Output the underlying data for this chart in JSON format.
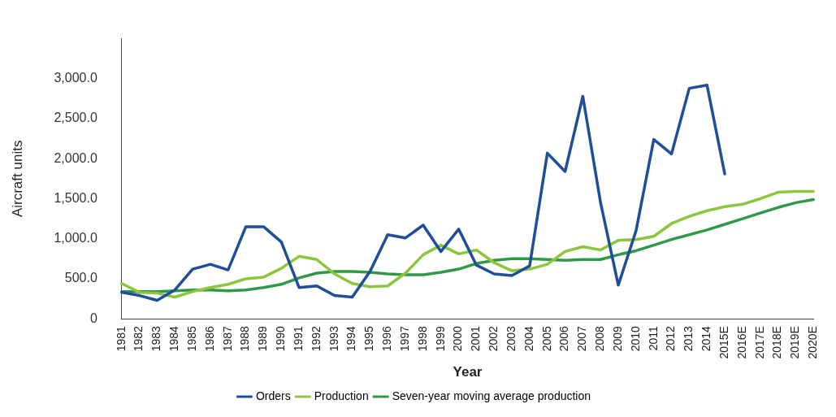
{
  "chart_data": {
    "type": "line",
    "xlabel": "Year",
    "ylabel": "Aircraft units",
    "categories": [
      "1981",
      "1982",
      "1983",
      "1984",
      "1985",
      "1986",
      "1987",
      "1988",
      "1989",
      "1990",
      "1991",
      "1992",
      "1993",
      "1994",
      "1995",
      "1996",
      "1997",
      "1998",
      "1999",
      "2000",
      "2001",
      "2002",
      "2003",
      "2004",
      "2005",
      "2006",
      "2007",
      "2008",
      "2009",
      "2010",
      "2011",
      "2012",
      "2013",
      "2014",
      "2015E",
      "2016E",
      "2017E",
      "2018E",
      "2019E",
      "2020E"
    ],
    "series": [
      {
        "name": "Orders",
        "color": "#1f4e9a",
        "values": [
          330,
          290,
          230,
          360,
          620,
          680,
          610,
          1150,
          1150,
          960,
          390,
          410,
          290,
          270,
          590,
          1050,
          1010,
          1170,
          840,
          1120,
          670,
          560,
          540,
          660,
          2070,
          1840,
          2780,
          1450,
          420,
          1100,
          2240,
          2060,
          2880,
          2920,
          1810,
          null,
          null,
          null,
          null,
          null
        ]
      },
      {
        "name": "Production",
        "color": "#8cc63f",
        "values": [
          440,
          330,
          320,
          270,
          340,
          390,
          430,
          500,
          520,
          630,
          780,
          740,
          560,
          440,
          400,
          410,
          570,
          800,
          920,
          810,
          860,
          700,
          600,
          620,
          680,
          840,
          900,
          860,
          980,
          990,
          1030,
          1190,
          1280,
          1350,
          1400,
          1430,
          1500,
          1580,
          1590,
          1590
        ]
      },
      {
        "name": "Seven-year moving average production",
        "color": "#2e9a47",
        "values": [
          340,
          340,
          340,
          350,
          360,
          360,
          350,
          360,
          390,
          430,
          510,
          570,
          590,
          590,
          580,
          560,
          550,
          550,
          580,
          620,
          690,
          730,
          750,
          750,
          740,
          730,
          740,
          740,
          800,
          850,
          920,
          990,
          1050,
          1110,
          1180,
          1250,
          1320,
          1390,
          1450,
          1490
        ]
      }
    ],
    "ylim": [
      0,
      3500
    ],
    "yticks": [
      {
        "value": 0,
        "label": "0"
      },
      {
        "value": 500,
        "label": "500.0"
      },
      {
        "value": 1000,
        "label": "1,000.0"
      },
      {
        "value": 1500,
        "label": "1,500.0"
      },
      {
        "value": 2000,
        "label": "2,000.0"
      },
      {
        "value": 2500,
        "label": "2,500.0"
      },
      {
        "value": 3000,
        "label": "3,000.0"
      }
    ],
    "grid": false,
    "legend": "bottom",
    "marker": "none",
    "line_style": "solid"
  }
}
